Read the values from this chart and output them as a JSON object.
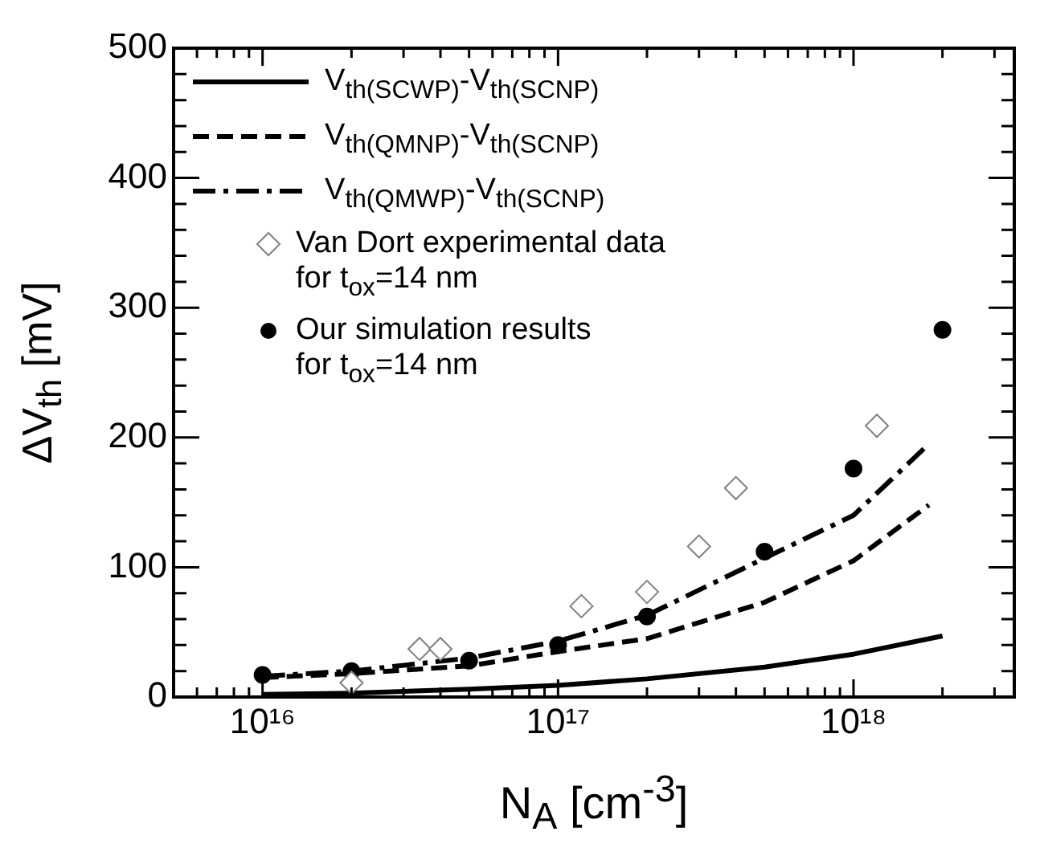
{
  "chart_data": {
    "type": "line",
    "xlabel": "N$_{A}$ [cm$^{-3}$]",
    "ylabel": "ΔV$_{th}$ [mV]",
    "log": "x",
    "grid": false,
    "legend": "top left",
    "xlim": [
      5000000000000000.0,
      3.5e+18
    ],
    "ylim": [
      0,
      500
    ],
    "xticks": [
      {
        "value": 6000000000000000.0,
        "label": null
      },
      {
        "value": 7000000000000000.0,
        "label": null
      },
      {
        "value": 8000000000000000.0,
        "label": null
      },
      {
        "value": 9000000000000000.0,
        "label": null
      },
      {
        "value": 1e+16,
        "label": "10¹⁶"
      },
      {
        "value": 2e+16,
        "label": null
      },
      {
        "value": 3e+16,
        "label": null
      },
      {
        "value": 4e+16,
        "label": null
      },
      {
        "value": 5e+16,
        "label": null
      },
      {
        "value": 6e+16,
        "label": null
      },
      {
        "value": 7e+16,
        "label": null
      },
      {
        "value": 8e+16,
        "label": null
      },
      {
        "value": 9e+16,
        "label": null
      },
      {
        "value": 1e+17,
        "label": "10¹⁷"
      },
      {
        "value": 2e+17,
        "label": null
      },
      {
        "value": 3e+17,
        "label": null
      },
      {
        "value": 4e+17,
        "label": null
      },
      {
        "value": 5e+17,
        "label": null
      },
      {
        "value": 6e+17,
        "label": null
      },
      {
        "value": 7e+17,
        "label": null
      },
      {
        "value": 8e+17,
        "label": null
      },
      {
        "value": 9e+17,
        "label": null
      },
      {
        "value": 1e+18,
        "label": "10¹⁸"
      },
      {
        "value": 2e+18,
        "label": null
      },
      {
        "value": 3e+18,
        "label": null
      }
    ],
    "yticks": [
      0,
      {
        "value": 20,
        "label": null
      },
      {
        "value": 40,
        "label": null
      },
      {
        "value": 60,
        "label": null
      },
      {
        "value": 80,
        "label": null
      },
      100,
      {
        "value": 120,
        "label": null
      },
      {
        "value": 140,
        "label": null
      },
      {
        "value": 160,
        "label": null
      },
      {
        "value": 180,
        "label": null
      },
      200,
      {
        "value": 220,
        "label": null
      },
      {
        "value": 240,
        "label": null
      },
      {
        "value": 260,
        "label": null
      },
      {
        "value": 280,
        "label": null
      },
      300,
      {
        "value": 320,
        "label": null
      },
      {
        "value": 340,
        "label": null
      },
      {
        "value": 360,
        "label": null
      },
      {
        "value": 380,
        "label": null
      },
      400,
      {
        "value": 420,
        "label": null
      },
      {
        "value": 440,
        "label": null
      },
      {
        "value": 460,
        "label": null
      },
      {
        "value": 480,
        "label": null
      },
      500
    ],
    "series": [
      {
        "name": "V$_{th(SCWP)}$-V$_{th(SCNP)}$",
        "type": "line",
        "color": "#000000",
        "line_style": "solid",
        "marker": "none",
        "x": [
          1e+16,
          2e+16,
          5e+16,
          1e+17,
          2e+17,
          5e+17,
          1e+18,
          2e+18
        ],
        "values": [
          2,
          3,
          6,
          9,
          14,
          23,
          33,
          47
        ]
      },
      {
        "name": "V$_{th(QMNP)}$-V$_{th(SCNP)}$",
        "type": "line",
        "color": "#000000",
        "line_style": "dashed",
        "marker": "none",
        "x": [
          1e+16,
          2e+16,
          5e+16,
          1e+17,
          2e+17,
          5e+17,
          1e+18,
          1.8e+18
        ],
        "values": [
          15,
          18,
          24,
          35,
          45,
          73,
          105,
          148
        ]
      },
      {
        "name": "V$_{th(QMWP)}$-V$_{th(SCNP)}$",
        "type": "line",
        "color": "#000000",
        "line_style": "dashdot",
        "marker": "none",
        "x": [
          1e+16,
          2e+16,
          5e+16,
          1e+17,
          2e+17,
          5e+17,
          1e+18,
          1.8e+18
        ],
        "values": [
          16,
          20,
          30,
          43,
          63,
          107,
          140,
          195
        ]
      },
      {
        "name": "Van Dort experimental data\nfor  t$_{ox}$=14 nm",
        "type": "scatter",
        "color": "#808080",
        "marker": "diamond",
        "x": [
          2e+16,
          3.4e+16,
          4e+16,
          1.2e+17,
          2e+17,
          3e+17,
          4e+17,
          1.2e+18
        ],
        "values": [
          11,
          37,
          37,
          70,
          81,
          116,
          161,
          209
        ]
      },
      {
        "name": "Our simulation results\nfor  t$_{ox}$=14 nm",
        "type": "scatter",
        "color": "#000000",
        "marker": "circle",
        "x": [
          1e+16,
          2e+16,
          5e+16,
          1e+17,
          2e+17,
          5e+17,
          1e+18,
          2e+18
        ],
        "values": [
          17,
          20,
          28,
          40,
          62,
          112,
          176,
          283
        ]
      }
    ]
  }
}
